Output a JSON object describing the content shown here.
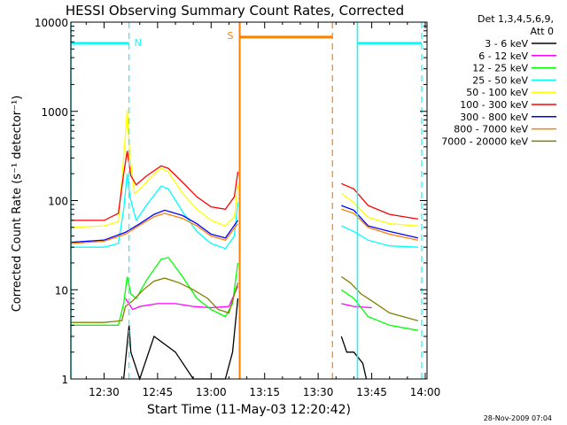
{
  "chart_data": {
    "type": "line",
    "title": "HESSI Observing Summary Count Rates, Corrected",
    "xlabel": "Start Time (11-May-03 12:20:42)",
    "ylabel": "Corrected Count Rate (s⁻¹ detector⁻¹)",
    "x_scale": "time",
    "y_scale": "log",
    "xlim": [
      "12:20:42",
      "14:00:30"
    ],
    "ylim": [
      1,
      10000
    ],
    "x_ticks": [
      "12:30",
      "12:45",
      "13:00",
      "13:15",
      "13:30",
      "13:45",
      "14:00"
    ],
    "y_ticks": [
      "1",
      "10",
      "100",
      "1000",
      "10000"
    ],
    "legend_position": "outside-right",
    "legend_header": [
      "Det 1,3,4,5,6,9,",
      "Att 0"
    ],
    "series": [
      {
        "name": "3 - 6 keV",
        "color": "#000000",
        "segments": [
          [
            [
              "12:35:30",
              1
            ],
            [
              "12:37:00",
              4
            ],
            [
              "12:37:30",
              2
            ],
            [
              "12:40:00",
              1
            ],
            [
              "12:44:00",
              3
            ],
            [
              "12:50:00",
              2
            ],
            [
              "12:55:00",
              1
            ],
            [
              "13:00:00",
              1
            ],
            [
              "13:04:00",
              1
            ],
            [
              "13:06:00",
              2
            ],
            [
              "13:07:30",
              8
            ]
          ],
          [
            [
              "13:36:30",
              3
            ],
            [
              "13:38:00",
              2
            ],
            [
              "13:40:00",
              2
            ],
            [
              "13:42:30",
              1.5
            ],
            [
              "13:43:30",
              1
            ]
          ]
        ]
      },
      {
        "name": "6 - 12 keV",
        "color": "#ff00ff",
        "segments": [
          [
            [
              "12:36:00",
              8
            ],
            [
              "12:38:00",
              6
            ],
            [
              "12:40:00",
              6.5
            ],
            [
              "12:45:00",
              7
            ],
            [
              "12:50:00",
              7
            ],
            [
              "12:55:00",
              6.5
            ],
            [
              "13:00:00",
              6.3
            ],
            [
              "13:05:00",
              6.5
            ],
            [
              "13:07:30",
              11
            ]
          ],
          [
            [
              "13:36:30",
              7
            ],
            [
              "13:40:00",
              6.5
            ],
            [
              "13:45:00",
              6.3
            ]
          ]
        ]
      },
      {
        "name": "12 - 25 keV",
        "color": "#00ff00",
        "segments": [
          [
            [
              "12:20:42",
              4
            ],
            [
              "12:30:00",
              4
            ],
            [
              "12:34:00",
              4
            ],
            [
              "12:35:30",
              7
            ],
            [
              "12:36:30",
              14
            ],
            [
              "12:37:30",
              9
            ],
            [
              "12:39:00",
              8
            ],
            [
              "12:42:00",
              13
            ],
            [
              "12:46:00",
              22
            ],
            [
              "12:48:00",
              23
            ],
            [
              "12:52:00",
              14
            ],
            [
              "12:56:00",
              8
            ],
            [
              "13:00:00",
              6
            ],
            [
              "13:04:00",
              5
            ],
            [
              "13:06:00",
              7
            ],
            [
              "13:07:30",
              20
            ]
          ],
          [
            [
              "13:36:30",
              10
            ],
            [
              "13:40:00",
              8
            ],
            [
              "13:44:00",
              5
            ],
            [
              "13:50:00",
              4
            ],
            [
              "13:58:00",
              3.5
            ]
          ]
        ]
      },
      {
        "name": "25 - 50 keV",
        "color": "#00ffff",
        "segments": [
          [
            [
              "12:20:42",
              30
            ],
            [
              "12:30:00",
              30
            ],
            [
              "12:34:00",
              33
            ],
            [
              "12:35:30",
              80
            ],
            [
              "12:36:30",
              200
            ],
            [
              "12:37:15",
              110
            ],
            [
              "12:39:00",
              60
            ],
            [
              "12:42:00",
              90
            ],
            [
              "12:46:00",
              145
            ],
            [
              "12:48:00",
              135
            ],
            [
              "12:52:00",
              75
            ],
            [
              "12:56:00",
              45
            ],
            [
              "13:00:00",
              33
            ],
            [
              "13:04:00",
              29
            ],
            [
              "13:06:30",
              40
            ],
            [
              "13:07:30",
              95
            ]
          ],
          [
            [
              "13:36:30",
              52
            ],
            [
              "13:40:00",
              45
            ],
            [
              "13:44:00",
              36
            ],
            [
              "13:50:00",
              31
            ],
            [
              "13:58:00",
              30
            ]
          ]
        ]
      },
      {
        "name": "50 - 100 keV",
        "color": "#ffff00",
        "segments": [
          [
            [
              "12:20:42",
              50
            ],
            [
              "12:30:00",
              52
            ],
            [
              "12:34:00",
              58
            ],
            [
              "12:35:30",
              300
            ],
            [
              "12:36:30",
              1050
            ],
            [
              "12:37:10",
              340
            ],
            [
              "12:38:30",
              120
            ],
            [
              "12:40:30",
              140
            ],
            [
              "12:44:00",
              200
            ],
            [
              "12:46:00",
              230
            ],
            [
              "12:48:00",
              210
            ],
            [
              "12:52:00",
              120
            ],
            [
              "12:56:00",
              80
            ],
            [
              "13:00:00",
              60
            ],
            [
              "13:04:00",
              52
            ],
            [
              "13:06:30",
              65
            ],
            [
              "13:07:30",
              150
            ]
          ],
          [
            [
              "13:36:30",
              120
            ],
            [
              "13:40:00",
              95
            ],
            [
              "13:44:00",
              65
            ],
            [
              "13:50:00",
              55
            ],
            [
              "13:58:00",
              52
            ]
          ]
        ]
      },
      {
        "name": "100 - 300 keV",
        "color": "#ff0000",
        "segments": [
          [
            [
              "12:20:42",
              60
            ],
            [
              "12:30:00",
              60
            ],
            [
              "12:34:00",
              72
            ],
            [
              "12:35:30",
              200
            ],
            [
              "12:36:30",
              360
            ],
            [
              "12:37:30",
              190
            ],
            [
              "12:39:00",
              150
            ],
            [
              "12:42:00",
              190
            ],
            [
              "12:46:00",
              245
            ],
            [
              "12:48:00",
              230
            ],
            [
              "12:52:00",
              160
            ],
            [
              "12:56:00",
              110
            ],
            [
              "13:00:00",
              85
            ],
            [
              "13:04:00",
              80
            ],
            [
              "13:06:30",
              110
            ],
            [
              "13:07:30",
              210
            ]
          ],
          [
            [
              "13:36:30",
              155
            ],
            [
              "13:40:00",
              135
            ],
            [
              "13:44:00",
              88
            ],
            [
              "13:50:00",
              70
            ],
            [
              "13:58:00",
              62
            ]
          ]
        ]
      },
      {
        "name": "300 - 800 keV",
        "color": "#0000ff",
        "segments": [
          [
            [
              "12:20:42",
              34
            ],
            [
              "12:30:00",
              36
            ],
            [
              "12:36:00",
              44
            ],
            [
              "12:40:00",
              55
            ],
            [
              "12:44:00",
              70
            ],
            [
              "12:47:00",
              78
            ],
            [
              "12:52:00",
              68
            ],
            [
              "12:56:00",
              55
            ],
            [
              "13:00:00",
              42
            ],
            [
              "13:04:00",
              38
            ],
            [
              "13:07:30",
              60
            ]
          ],
          [
            [
              "13:36:30",
              88
            ],
            [
              "13:40:00",
              78
            ],
            [
              "13:44:00",
              52
            ],
            [
              "13:50:00",
              45
            ],
            [
              "13:58:00",
              38
            ]
          ]
        ]
      },
      {
        "name": "800 - 7000 keV",
        "color": "#ff8000",
        "segments": [
          [
            [
              "12:20:42",
              33
            ],
            [
              "12:30:00",
              35
            ],
            [
              "12:36:00",
              42
            ],
            [
              "12:40:00",
              53
            ],
            [
              "12:44:00",
              66
            ],
            [
              "12:47:00",
              72
            ],
            [
              "12:52:00",
              63
            ],
            [
              "12:56:00",
              52
            ],
            [
              "13:00:00",
              40
            ],
            [
              "13:04:00",
              36
            ],
            [
              "13:07:30",
              55
            ]
          ],
          [
            [
              "13:36:30",
              80
            ],
            [
              "13:40:00",
              72
            ],
            [
              "13:44:00",
              50
            ],
            [
              "13:50:00",
              42
            ],
            [
              "13:58:00",
              36
            ]
          ]
        ]
      },
      {
        "name": "7000 - 20000 keV",
        "color": "#808000",
        "segments": [
          [
            [
              "12:20:42",
              4.3
            ],
            [
              "12:30:00",
              4.3
            ],
            [
              "12:35:00",
              4.5
            ],
            [
              "12:36:00",
              6.5
            ],
            [
              "12:38:00",
              7.5
            ],
            [
              "12:41:00",
              10
            ],
            [
              "12:44:00",
              12.5
            ],
            [
              "12:47:00",
              13.5
            ],
            [
              "12:51:00",
              12
            ],
            [
              "12:55:00",
              10
            ],
            [
              "12:59:00",
              8
            ],
            [
              "13:02:00",
              6
            ],
            [
              "13:05:00",
              5.5
            ],
            [
              "13:07:30",
              12
            ]
          ],
          [
            [
              "13:36:30",
              14
            ],
            [
              "13:39:00",
              12
            ],
            [
              "13:42:00",
              9
            ],
            [
              "13:45:00",
              7.5
            ],
            [
              "13:50:00",
              5.5
            ],
            [
              "13:58:00",
              4.5
            ]
          ]
        ]
      }
    ],
    "annotations": [
      {
        "label": "N",
        "color": "#00ffff",
        "type": "night"
      },
      {
        "label": "S",
        "color": "#ff8000",
        "type": "saa"
      }
    ],
    "markers": {
      "night_bars": [
        {
          "from": "12:20:42",
          "to": "12:37:00",
          "value": 5800
        },
        {
          "from": "13:41:00",
          "to": "13:59:00",
          "value": 5800
        }
      ],
      "night_solid": [
        "12:20:42",
        "13:41:00"
      ],
      "night_dashed": [
        "12:37:00",
        "13:59:00"
      ],
      "saa_bar": {
        "from": "13:08:00",
        "to": "13:34:00",
        "value": 6800
      },
      "saa_solid": "13:08:00",
      "saa_dashed": "13:34:00"
    },
    "footer": "28-Nov-2009 07:04"
  }
}
